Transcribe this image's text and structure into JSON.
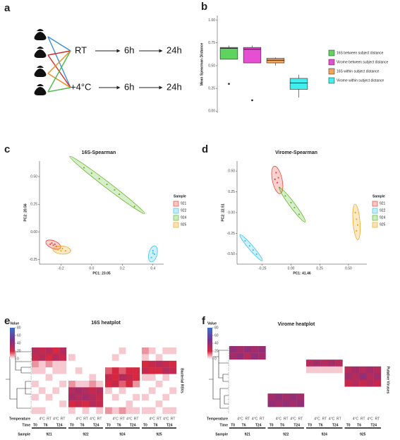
{
  "diagram": {
    "panel_label": "a",
    "conditions": [
      {
        "label": "RT",
        "steps": [
          "6h",
          "24h"
        ]
      },
      {
        "label": "+4°C",
        "steps": [
          "6h",
          "24h"
        ]
      }
    ]
  },
  "chart_data": [
    {
      "type": "box",
      "panel_label": "b",
      "ylabel": "Mean Spearman Distance",
      "categories": [
        "16S between subject distance",
        "Virome between subject distance",
        "16S within subject distance",
        "Virome within subject distance"
      ],
      "colors": [
        "#5fd35f",
        "#e64fd2",
        "#f3a25a",
        "#3ff0ee"
      ],
      "boxes": [
        {
          "min": 0.57,
          "q1": 0.57,
          "median": 0.69,
          "q3": 0.7,
          "max": 0.72,
          "outliers": [
            0.3
          ]
        },
        {
          "min": 0.53,
          "q1": 0.53,
          "median": 0.68,
          "q3": 0.7,
          "max": 0.72,
          "outliers": [
            0.12
          ]
        },
        {
          "min": 0.5,
          "q1": 0.53,
          "median": 0.56,
          "q3": 0.58,
          "max": 0.59,
          "outliers": []
        },
        {
          "min": 0.15,
          "q1": 0.24,
          "median": 0.31,
          "q3": 0.36,
          "max": 0.4,
          "outliers": []
        }
      ],
      "ylim": [
        -0.02,
        1.05
      ],
      "yticks": [
        {
          "value": 0,
          "label": "0.00"
        },
        0.25,
        {
          "value": 0.5,
          "label": "0.50"
        },
        0.75,
        {
          "value": 1,
          "label": "1.00"
        }
      ]
    },
    {
      "type": "scatter",
      "panel_label": "c",
      "title": "16S-Spearman",
      "xlabel": "PC1: 23.05",
      "ylabel": "PC2: 20.56",
      "legend_title": "Sample",
      "xlim": [
        -0.34,
        0.47
      ],
      "ylim": [
        -0.29,
        0.64
      ],
      "xticks": [
        -0.2,
        {
          "value": 0,
          "label": "0.0"
        },
        0.2,
        0.4
      ],
      "yticks": [
        -0.25,
        {
          "value": 0,
          "label": "0.00"
        },
        0.25,
        {
          "value": 0.5,
          "label": "0.50"
        }
      ],
      "series": [
        {
          "name": "921",
          "color": "#e8463c",
          "x": [
            -0.27,
            -0.25,
            -0.23,
            -0.26,
            -0.24
          ],
          "y": [
            -0.11,
            -0.12,
            -0.13,
            -0.1,
            -0.11
          ]
        },
        {
          "name": "922",
          "color": "#3fc4e8",
          "x": [
            0.4,
            0.41,
            0.39,
            0.4
          ],
          "y": [
            -0.17,
            -0.2,
            -0.23,
            -0.19
          ]
        },
        {
          "name": "924",
          "color": "#62b82a",
          "x": [
            -0.05,
            0,
            0.05,
            0.1,
            0.15,
            0.18,
            0.28
          ],
          "y": [
            0.58,
            0.53,
            0.48,
            0.43,
            0.38,
            0.34,
            0.23
          ]
        },
        {
          "name": "925",
          "color": "#f0a81e",
          "x": [
            -0.22,
            -0.19,
            -0.17,
            -0.2
          ],
          "y": [
            -0.16,
            -0.15,
            -0.17,
            -0.17
          ]
        }
      ]
    },
    {
      "type": "scatter",
      "panel_label": "d",
      "title": "Virome-Spearman",
      "xlabel": "PC1: 41.46",
      "ylabel": "PC2: 22.51",
      "legend_title": "Sample",
      "xlim": [
        -0.47,
        0.66
      ],
      "ylim": [
        -0.62,
        0.62
      ],
      "xticks": [
        -0.25,
        {
          "value": 0,
          "label": "0.00"
        },
        0.25,
        {
          "value": 0.5,
          "label": "0.50"
        }
      ],
      "yticks": [
        {
          "value": -0.5,
          "label": "-0.50"
        },
        -0.25,
        {
          "value": 0,
          "label": "0.00"
        },
        0.25,
        {
          "value": 0.5,
          "label": "0.50"
        }
      ],
      "series": [
        {
          "name": "921",
          "color": "#e8463c",
          "x": [
            -0.13,
            -0.11,
            -0.12,
            -0.1,
            -0.14
          ],
          "y": [
            0.48,
            0.42,
            0.36,
            0.3,
            0.4
          ]
        },
        {
          "name": "922",
          "color": "#3fc4e8",
          "x": [
            -0.4,
            -0.36,
            -0.33,
            -0.3
          ],
          "y": [
            -0.34,
            -0.4,
            -0.45,
            -0.5
          ]
        },
        {
          "name": "924",
          "color": "#62b82a",
          "x": [
            -0.05,
            0,
            0.03,
            0.07
          ],
          "y": [
            0.2,
            0.12,
            0.06,
            -0.02
          ]
        },
        {
          "name": "925",
          "color": "#f0a81e",
          "x": [
            0.56,
            0.57,
            0.58,
            0.57
          ],
          "y": [
            0,
            -0.08,
            -0.15,
            -0.22
          ]
        }
      ]
    },
    {
      "type": "heatmap",
      "panel_label": "e",
      "title": "16S heatplot",
      "legend_title": "Value",
      "side_label": "Bacterial RSVs",
      "zlim": [
        0,
        80
      ],
      "colorbar_ticks": [
        0,
        20,
        40,
        60,
        80
      ],
      "row_names": [
        "Temperature",
        "Time",
        "Sample"
      ],
      "temperatures": [
        "4°C",
        "RT"
      ],
      "times": [
        "T0",
        "T6",
        "T24"
      ],
      "samples": [
        "921",
        "922",
        "924",
        "925"
      ],
      "z": [
        [
          30,
          25,
          30,
          20,
          30,
          0,
          0,
          0,
          0,
          0,
          0,
          0,
          5,
          0,
          0,
          10,
          5,
          0,
          5,
          5
        ],
        [
          25,
          30,
          20,
          30,
          25,
          5,
          0,
          0,
          0,
          0,
          0,
          5,
          0,
          0,
          0,
          5,
          0,
          5,
          0,
          0
        ],
        [
          10,
          5,
          10,
          5,
          5,
          0,
          0,
          0,
          0,
          0,
          0,
          0,
          0,
          0,
          0,
          20,
          25,
          30,
          25,
          20
        ],
        [
          5,
          5,
          0,
          5,
          5,
          0,
          5,
          0,
          0,
          0,
          15,
          20,
          15,
          20,
          20,
          25,
          20,
          20,
          30,
          25
        ],
        [
          0,
          0,
          5,
          0,
          0,
          0,
          0,
          0,
          5,
          0,
          25,
          20,
          30,
          25,
          20,
          5,
          5,
          0,
          5,
          0
        ],
        [
          5,
          0,
          0,
          0,
          5,
          10,
          5,
          5,
          10,
          5,
          20,
          25,
          15,
          20,
          10,
          0,
          0,
          5,
          0,
          0
        ],
        [
          0,
          5,
          0,
          5,
          0,
          30,
          35,
          30,
          25,
          30,
          5,
          0,
          5,
          0,
          0,
          0,
          5,
          0,
          0,
          5
        ],
        [
          5,
          0,
          5,
          0,
          0,
          35,
          30,
          35,
          30,
          25,
          0,
          5,
          0,
          0,
          5,
          5,
          0,
          0,
          5,
          0
        ],
        [
          0,
          0,
          0,
          0,
          5,
          20,
          25,
          20,
          30,
          25,
          0,
          0,
          0,
          5,
          0,
          0,
          0,
          5,
          0,
          0
        ],
        [
          5,
          5,
          0,
          0,
          0,
          5,
          0,
          5,
          0,
          5,
          10,
          5,
          10,
          5,
          5,
          5,
          5,
          0,
          5,
          5
        ]
      ]
    },
    {
      "type": "heatmap",
      "panel_label": "f",
      "title": "Virome heatplot",
      "legend_title": "Value",
      "side_label": "Putative Viruses",
      "zlim": [
        0,
        80
      ],
      "colorbar_ticks": [
        0,
        20,
        40,
        60,
        80
      ],
      "row_names": [
        "Temperature",
        "Time",
        "Sample"
      ],
      "temperatures": [
        "4°C",
        "RT"
      ],
      "times": [
        "T0",
        "T6",
        "T24"
      ],
      "samples": [
        "921",
        "922",
        "924",
        "925"
      ],
      "z": [
        [
          40,
          35,
          40,
          35,
          40,
          0,
          0,
          0,
          0,
          0,
          0,
          0,
          0,
          0,
          0,
          0,
          0,
          0,
          0,
          0
        ],
        [
          35,
          40,
          30,
          40,
          35,
          0,
          0,
          0,
          0,
          0,
          0,
          0,
          0,
          0,
          0,
          0,
          0,
          0,
          0,
          0
        ],
        [
          0,
          0,
          0,
          0,
          0,
          0,
          0,
          0,
          0,
          0,
          30,
          35,
          30,
          35,
          30,
          0,
          0,
          0,
          0,
          0
        ],
        [
          0,
          0,
          0,
          0,
          0,
          0,
          0,
          0,
          0,
          0,
          5,
          5,
          5,
          5,
          5,
          30,
          35,
          30,
          35,
          30
        ],
        [
          0,
          0,
          0,
          0,
          0,
          0,
          0,
          0,
          0,
          0,
          0,
          0,
          0,
          0,
          0,
          35,
          30,
          40,
          30,
          35
        ],
        [
          0,
          0,
          0,
          0,
          0,
          0,
          0,
          0,
          0,
          0,
          0,
          0,
          0,
          0,
          0,
          25,
          30,
          25,
          30,
          25
        ],
        [
          0,
          0,
          0,
          0,
          0,
          0,
          0,
          0,
          0,
          0,
          0,
          0,
          0,
          0,
          0,
          0,
          0,
          0,
          0,
          0
        ],
        [
          0,
          0,
          0,
          0,
          0,
          35,
          40,
          35,
          40,
          35,
          0,
          0,
          0,
          0,
          0,
          0,
          0,
          0,
          0,
          0
        ],
        [
          0,
          0,
          0,
          0,
          0,
          40,
          35,
          40,
          35,
          40,
          0,
          0,
          0,
          0,
          0,
          0,
          0,
          0,
          0,
          0
        ],
        [
          0,
          0,
          0,
          0,
          0,
          0,
          0,
          0,
          0,
          0,
          0,
          0,
          0,
          0,
          0,
          0,
          0,
          0,
          0,
          0
        ]
      ]
    }
  ]
}
